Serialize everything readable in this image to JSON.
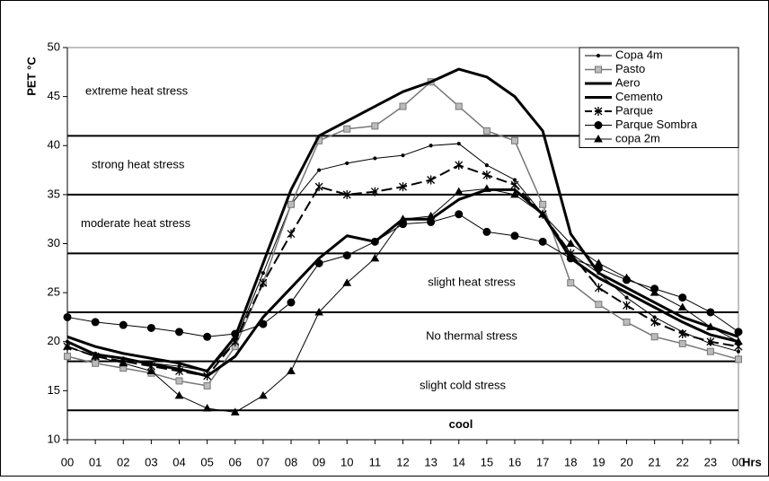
{
  "chart_data": {
    "type": "line",
    "y_label": "PET °C",
    "x_label": "Hrs",
    "categories": [
      "00",
      "01",
      "02",
      "03",
      "04",
      "05",
      "06",
      "07",
      "08",
      "09",
      "10",
      "11",
      "12",
      "13",
      "14",
      "15",
      "16",
      "17",
      "18",
      "19",
      "20",
      "21",
      "22",
      "23",
      "00"
    ],
    "ylim": [
      10,
      50
    ],
    "yticks": [
      10,
      15,
      20,
      25,
      30,
      35,
      40,
      45,
      50
    ],
    "thresholds": [
      13,
      18,
      23,
      29,
      35,
      41
    ],
    "zones": [
      "cool",
      "slight cold stress",
      "No thermal stress",
      "slight heat stress",
      "moderate heat stress",
      "strong heat stress",
      "extreme heat stress"
    ],
    "legend": "top-right",
    "series": [
      {
        "name": "Copa 4m",
        "color": "#000000",
        "width": 1,
        "marker": "dot",
        "dash": "none",
        "values": [
          20,
          18.8,
          18.3,
          17.8,
          17.5,
          17,
          20,
          27,
          34,
          37.5,
          38.2,
          38.7,
          39,
          40,
          40.2,
          38,
          36.5,
          33,
          29,
          27,
          24.5,
          22.5,
          21,
          19.8,
          19
        ]
      },
      {
        "name": "Pasto",
        "color": "#777777",
        "width": 1.5,
        "marker": "square",
        "dash": "none",
        "values": [
          18.5,
          17.8,
          17.3,
          16.8,
          16,
          15.5,
          19.5,
          26,
          34,
          40.5,
          41.7,
          42,
          44,
          46.5,
          44,
          41.5,
          40.5,
          34,
          26,
          23.8,
          22,
          20.5,
          19.8,
          19,
          18.2
        ]
      },
      {
        "name": "Aero",
        "color": "#000000",
        "width": 3,
        "marker": "none",
        "dash": "none",
        "values": [
          20.5,
          19.5,
          18.8,
          18.3,
          17.8,
          17,
          20.5,
          28,
          35.5,
          41,
          42.5,
          44,
          45.5,
          46.5,
          47.8,
          47,
          45,
          41.5,
          31,
          27,
          25.5,
          24,
          22.5,
          21.5,
          20.5
        ]
      },
      {
        "name": "Cemento",
        "color": "#000000",
        "width": 3,
        "marker": "none",
        "dash": "none",
        "values": [
          20,
          18.7,
          18.3,
          17.7,
          17.2,
          16.5,
          18.5,
          22.5,
          25.5,
          28.5,
          30.8,
          30.2,
          32.5,
          32.5,
          34.5,
          35.5,
          35.5,
          33,
          28.5,
          26.5,
          25,
          23.5,
          22,
          20.7,
          20
        ]
      },
      {
        "name": "Parque",
        "color": "#000000",
        "width": 2,
        "marker": "star",
        "dash": "12 5",
        "values": [
          19.5,
          18.5,
          18,
          17.5,
          17,
          16.5,
          20,
          26,
          31,
          35.8,
          35,
          35.3,
          35.8,
          36.5,
          38,
          37,
          36,
          33,
          29,
          25.5,
          23.7,
          22,
          20.8,
          20,
          19.5
        ]
      },
      {
        "name": "Parque Sombra",
        "color": "#000000",
        "width": 1,
        "marker": "circle",
        "dash": "none",
        "values": [
          22.5,
          22,
          21.7,
          21.4,
          21,
          20.5,
          20.8,
          21.8,
          24,
          28,
          28.8,
          30.2,
          32,
          32.2,
          33,
          31.2,
          30.8,
          30.2,
          28.5,
          27.5,
          26.3,
          25.4,
          24.5,
          23,
          21
        ]
      },
      {
        "name": "copa 2m",
        "color": "#000000",
        "width": 1,
        "marker": "triangle",
        "dash": "none",
        "values": [
          19.5,
          18.5,
          17.8,
          17,
          14.5,
          13.2,
          12.8,
          14.5,
          17,
          23,
          26,
          28.5,
          32.5,
          32.8,
          35.3,
          35.6,
          35,
          33,
          30,
          28,
          26.5,
          25,
          23.5,
          21.5,
          20
        ]
      }
    ]
  }
}
